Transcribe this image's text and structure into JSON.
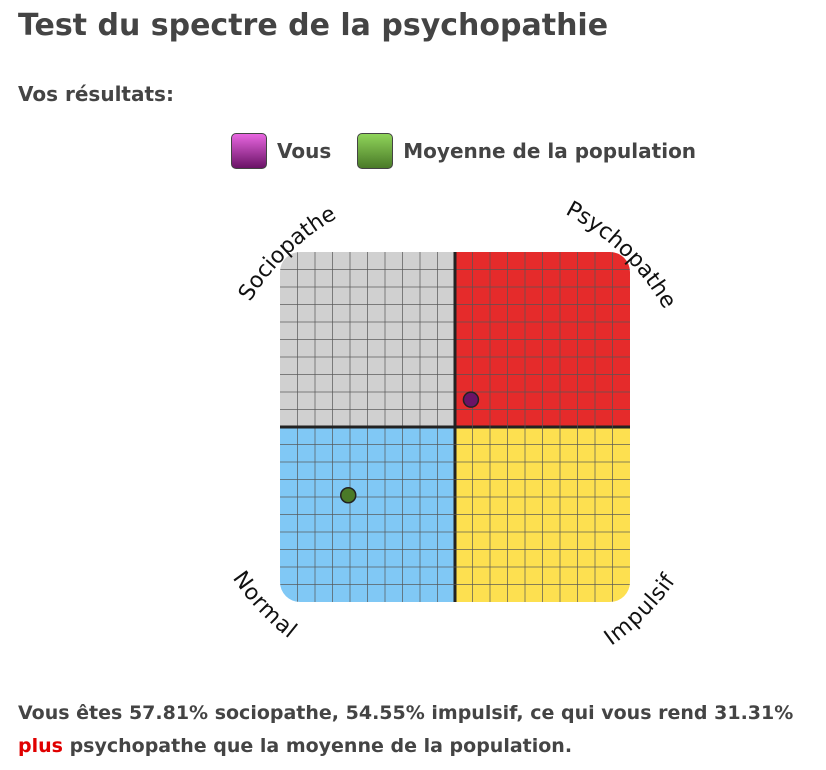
{
  "title": "Test du spectre de la psychopathie",
  "subtitle": "Vos résultats:",
  "legend": [
    {
      "label": "Vous",
      "color_top": "#e866e0",
      "color_bottom": "#6a1366"
    },
    {
      "label": "Moyenne de la population",
      "color_top": "#8fd45a",
      "color_bottom": "#4a7a28"
    }
  ],
  "chart_data": {
    "type": "scatter",
    "quadrants": {
      "top_left": {
        "label": "Sociopathe",
        "color": "#d0d0d0"
      },
      "top_right": {
        "label": "Psychopathe",
        "color": "#e52b2b"
      },
      "bottom_left": {
        "label": "Normal",
        "color": "#80c8f5"
      },
      "bottom_right": {
        "label": "Impulsif",
        "color": "#fde050"
      }
    },
    "xlabel": "Impulsif",
    "ylabel": "Sociopathe",
    "xlim": [
      0,
      100
    ],
    "ylim": [
      0,
      100
    ],
    "grid": true,
    "grid_divisions": 20,
    "series": [
      {
        "name": "Vous",
        "x": 54.55,
        "y": 57.81,
        "color": "#6a1366"
      },
      {
        "name": "Moyenne de la population",
        "x": 19.5,
        "y": 30.5,
        "color": "#4a7a28"
      }
    ]
  },
  "result": {
    "prefix": "Vous êtes 57.81% sociopathe, 54.55% impulsif, ce qui vous rend 31.31% ",
    "highlight": "plus",
    "suffix": " psychopathe que la moyenne de la population."
  }
}
